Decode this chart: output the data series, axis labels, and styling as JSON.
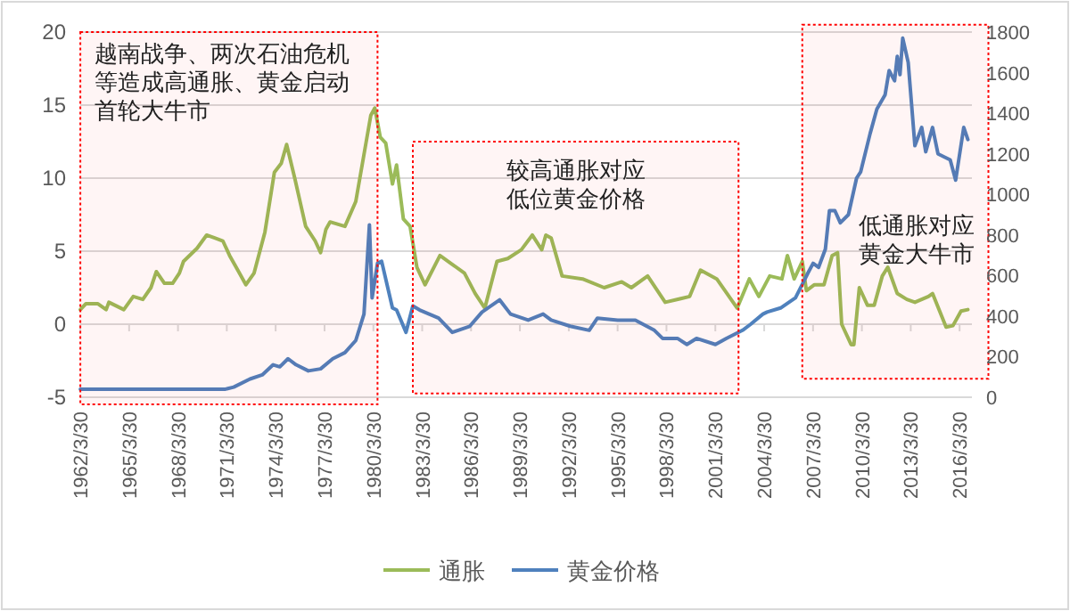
{
  "chart_data": {
    "type": "line",
    "grid": "y",
    "legend": "bottom",
    "line_style": "solid",
    "marker": "none",
    "xlim": [
      "1962-03-30",
      "2016-12-31"
    ],
    "xticks": [
      {
        "value": "1962-03-30",
        "label": "1962/3/30"
      },
      {
        "value": "1965-03-30",
        "label": "1965/3/30"
      },
      {
        "value": "1968-03-30",
        "label": "1968/3/30"
      },
      {
        "value": "1971-03-30",
        "label": "1971/3/30"
      },
      {
        "value": "1974-03-30",
        "label": "1974/3/30"
      },
      {
        "value": "1977-03-30",
        "label": "1977/3/30"
      },
      {
        "value": "1980-03-30",
        "label": "1980/3/30"
      },
      {
        "value": "1983-03-30",
        "label": "1983/3/30"
      },
      {
        "value": "1986-03-30",
        "label": "1986/3/30"
      },
      {
        "value": "1989-03-30",
        "label": "1989/3/30"
      },
      {
        "value": "1992-03-30",
        "label": "1992/3/30"
      },
      {
        "value": "1995-03-30",
        "label": "1995/3/30"
      },
      {
        "value": "1998-03-30",
        "label": "1998/3/30"
      },
      {
        "value": "2001-03-30",
        "label": "2001/3/30"
      },
      {
        "value": "2004-03-30",
        "label": "2004/3/30"
      },
      {
        "value": "2007-03-30",
        "label": "2007/3/30"
      },
      {
        "value": "2010-03-30",
        "label": "2010/3/30"
      },
      {
        "value": "2013-03-30",
        "label": "2013/3/30"
      },
      {
        "value": "2016-03-30",
        "label": "2016/3/30"
      }
    ],
    "ylim": [
      -5,
      20
    ],
    "yticks": [
      -5,
      0,
      5,
      10,
      15,
      20
    ],
    "y2lim": [
      0,
      1800
    ],
    "y2ticks": [
      0,
      200,
      400,
      600,
      800,
      1000,
      1200,
      1400,
      1600,
      1800
    ],
    "bands": [
      {
        "axis": "x",
        "from": "1962-04",
        "to": "1980-07",
        "label": "越南战争、两次石油危机等造成高通胀、黄金启动首轮大牛市",
        "color": "#ff0000"
      },
      {
        "axis": "x",
        "from": "1982-09",
        "to": "2002-09",
        "label": "较高通胀对应低位黄金价格",
        "color": "#ff0000"
      },
      {
        "axis": "x",
        "from": "2006-08",
        "to": "2016-12",
        "label": "低通胀对应黄金大牛市",
        "color": "#ff0000"
      }
    ],
    "series": [
      {
        "name": "通胀",
        "color": "#9bbb59",
        "x": [
          "1962-04",
          "1962-08",
          "1963-05",
          "1963-11",
          "1964-01",
          "1964-12",
          "1965-07",
          "1966-02",
          "1966-08",
          "1966-12",
          "1967-06",
          "1967-12",
          "1968-05",
          "1968-08",
          "1969-06",
          "1970-01",
          "1970-07",
          "1971-01",
          "1971-06",
          "1971-12",
          "1972-06",
          "1972-12",
          "1973-08",
          "1974-03",
          "1974-08",
          "1974-12",
          "1975-06",
          "1976-02",
          "1976-09",
          "1977-01",
          "1977-05",
          "1977-08",
          "1978-07",
          "1979-03",
          "1980-02",
          "1980-05",
          "1980-09",
          "1981-01",
          "1981-06",
          "1981-09",
          "1982-02",
          "1982-07",
          "1982-12",
          "1983-06",
          "1984-05",
          "1985-02",
          "1985-11",
          "1986-07",
          "1987-02",
          "1987-11",
          "1988-07",
          "1989-05",
          "1990-01",
          "1990-08",
          "1990-11",
          "1991-03",
          "1991-11",
          "1993-02",
          "1994-06",
          "1995-07",
          "1996-02",
          "1997-02",
          "1998-03",
          "1999-09",
          "2000-05",
          "2001-05",
          "2002-08",
          "2003-05",
          "2003-12",
          "2004-08",
          "2005-05",
          "2005-09",
          "2006-02",
          "2006-08",
          "2006-11",
          "2007-05",
          "2007-12",
          "2008-06",
          "2008-10",
          "2009-01",
          "2009-08",
          "2009-10",
          "2010-02",
          "2010-08",
          "2011-01",
          "2011-07",
          "2011-11",
          "2012-06",
          "2013-01",
          "2013-07",
          "2014-05",
          "2014-08",
          "2015-06",
          "2015-11",
          "2016-05",
          "2016-10"
        ],
        "values": [
          1.0,
          1.4,
          1.4,
          1.0,
          1.5,
          1.0,
          1.9,
          1.7,
          2.5,
          3.6,
          2.8,
          2.8,
          3.5,
          4.3,
          5.2,
          6.1,
          5.9,
          5.7,
          4.7,
          3.7,
          2.7,
          3.5,
          6.3,
          10.4,
          11.0,
          12.3,
          10.0,
          6.7,
          5.7,
          4.9,
          6.5,
          7.0,
          6.7,
          8.4,
          14.3,
          14.8,
          12.8,
          12.4,
          9.6,
          10.9,
          7.2,
          6.7,
          3.9,
          2.7,
          4.7,
          4.1,
          3.5,
          2.1,
          1.1,
          4.3,
          4.5,
          5.1,
          6.1,
          5.1,
          6.1,
          5.9,
          3.3,
          3.1,
          2.5,
          2.9,
          2.5,
          3.3,
          1.5,
          1.9,
          3.7,
          3.1,
          1.1,
          3.1,
          1.9,
          3.3,
          3.1,
          4.7,
          3.1,
          4.3,
          2.3,
          2.7,
          2.7,
          4.7,
          4.9,
          0.0,
          -1.4,
          -1.4,
          2.5,
          1.3,
          1.3,
          3.3,
          3.9,
          2.1,
          1.7,
          1.5,
          1.9,
          2.1,
          -0.2,
          -0.1,
          0.9,
          1.0
        ]
      },
      {
        "name": "黄金价格",
        "color": "#4f81bd",
        "axis": "y2",
        "x": [
          "1962-04",
          "1968-05",
          "1971-03",
          "1971-09",
          "1972-09",
          "1973-06",
          "1974-02",
          "1974-07",
          "1975-01",
          "1975-07",
          "1976-04",
          "1977-01",
          "1977-10",
          "1978-07",
          "1979-03",
          "1979-09",
          "1980-01",
          "1980-03",
          "1980-07",
          "1980-10",
          "1981-06",
          "1981-09",
          "1982-04",
          "1982-09",
          "1983-02",
          "1984-04",
          "1985-02",
          "1986-03",
          "1986-12",
          "1988-01",
          "1988-09",
          "1989-10",
          "1990-09",
          "1991-03",
          "1992-05",
          "1993-07",
          "1994-01",
          "1995-04",
          "1996-05",
          "1997-07",
          "1998-01",
          "1998-12",
          "1999-07",
          "2000-02",
          "2001-04",
          "2001-12",
          "2002-12",
          "2003-06",
          "2004-03",
          "2004-06",
          "2005-04",
          "2006-03",
          "2006-12",
          "2007-04",
          "2007-08",
          "2008-01",
          "2008-04",
          "2008-08",
          "2008-12",
          "2009-06",
          "2009-12",
          "2010-03",
          "2010-10",
          "2011-03",
          "2011-09",
          "2011-12",
          "2012-04",
          "2012-06",
          "2012-08",
          "2012-10",
          "2013-02",
          "2013-07",
          "2013-12",
          "2014-03",
          "2014-08",
          "2014-12",
          "2015-09",
          "2016-01",
          "2016-07",
          "2016-10"
        ],
        "values": [
          40,
          40,
          40,
          50,
          90,
          110,
          160,
          150,
          190,
          160,
          130,
          140,
          190,
          220,
          280,
          410,
          850,
          490,
          660,
          670,
          440,
          430,
          320,
          450,
          430,
          390,
          320,
          350,
          420,
          480,
          410,
          380,
          410,
          380,
          350,
          330,
          390,
          380,
          380,
          330,
          290,
          290,
          260,
          290,
          260,
          290,
          330,
          360,
          410,
          420,
          440,
          490,
          610,
          660,
          640,
          730,
          920,
          920,
          860,
          900,
          1080,
          1110,
          1300,
          1420,
          1490,
          1610,
          1560,
          1680,
          1590,
          1770,
          1650,
          1240,
          1330,
          1210,
          1330,
          1200,
          1170,
          1070,
          1330,
          1270
        ]
      }
    ]
  }
}
